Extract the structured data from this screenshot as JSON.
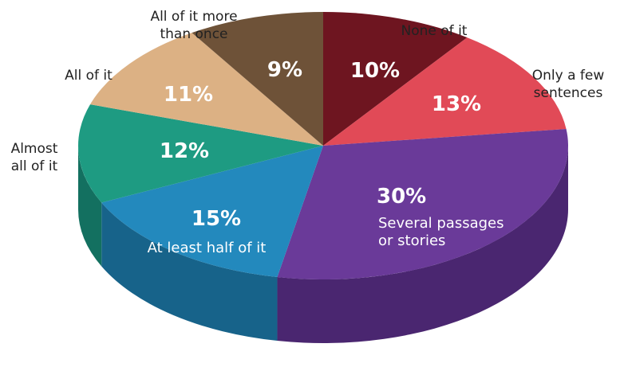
{
  "chart_data": {
    "type": "pie",
    "title": "",
    "slices": [
      {
        "label": "None of it",
        "value": 10,
        "display": "10%",
        "color": "#6e1520",
        "side": "#4e0d15",
        "label_lines": [
          "None of it"
        ],
        "label_inside": false
      },
      {
        "label": "Only a few sentences",
        "value": 13,
        "display": "13%",
        "color": "#e14a57",
        "side": "#a8323d",
        "label_lines": [
          "Only a few",
          "sentences"
        ],
        "label_inside": false
      },
      {
        "label": "Several passages or stories",
        "value": 30,
        "display": "30%",
        "color": "#6a3a99",
        "side": "#4a2670",
        "label_lines": [
          "Several passages",
          "or stories"
        ],
        "label_inside": true
      },
      {
        "label": "At least half of it",
        "value": 15,
        "display": "15%",
        "color": "#2389bd",
        "side": "#17638a",
        "label_lines": [
          "At least half of it"
        ],
        "label_inside": true
      },
      {
        "label": "Almost all of it",
        "value": 12,
        "display": "12%",
        "color": "#1e9b82",
        "side": "#137060",
        "label_lines": [
          "Almost",
          "all of it"
        ],
        "label_inside": false
      },
      {
        "label": "All of it",
        "value": 11,
        "display": "11%",
        "color": "#dcb184",
        "side": "#b08a62",
        "label_lines": [
          "All of it"
        ],
        "label_inside": false
      },
      {
        "label": "All of it more than once",
        "value": 9,
        "display": "9%",
        "color": "#6e5238",
        "side": "#4d3825",
        "label_lines": [
          "All of it more",
          "than once"
        ],
        "label_inside": false
      }
    ]
  }
}
